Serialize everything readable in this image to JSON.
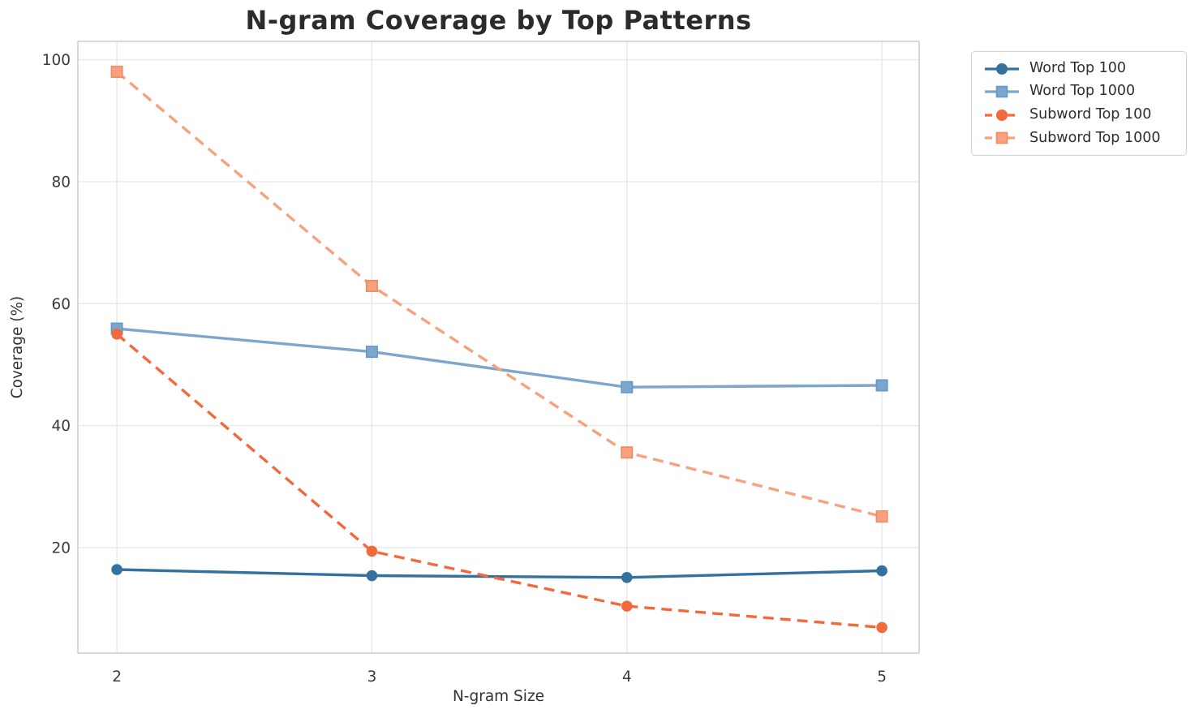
{
  "chart_data": {
    "type": "line",
    "title": "N-gram Coverage by Top Patterns",
    "xlabel": "N-gram Size",
    "ylabel": "Coverage (%)",
    "x": [
      2,
      3,
      4,
      5
    ],
    "xtick_labels": [
      "2",
      "3",
      "4",
      "5"
    ],
    "ytick_values": [
      20,
      40,
      60,
      80,
      100
    ],
    "ytick_labels": [
      "20",
      "40",
      "60",
      "80",
      "100"
    ],
    "xlim": [
      1.847,
      5.146
    ],
    "ylim": [
      2.7,
      103.0
    ],
    "grid": true,
    "legend_position": "outside-upper-right",
    "series": [
      {
        "name": "Word Top 100",
        "marker": "circle",
        "line_style": "solid",
        "color": "#35719f",
        "values": [
          16.4,
          15.4,
          15.1,
          16.2
        ]
      },
      {
        "name": "Word Top 1000",
        "marker": "square",
        "line_style": "solid",
        "color": "#7ba6cd",
        "marker_edge": "#6797c4",
        "values": [
          55.9,
          52.1,
          46.3,
          46.6
        ]
      },
      {
        "name": "Subword Top 100",
        "marker": "circle",
        "line_style": "dashed",
        "color": "#f2693c",
        "values": [
          55.0,
          19.4,
          10.4,
          6.9
        ]
      },
      {
        "name": "Subword Top 1000",
        "marker": "square",
        "line_style": "dashed",
        "color": "#f8a17e",
        "marker_edge": "#f18a5f",
        "values": [
          98.0,
          62.9,
          35.6,
          25.1
        ]
      }
    ],
    "style": {
      "background": "#ffffff",
      "grid_color": "#e8e8e8",
      "spine_color": "#c9c9c9",
      "tick_label_color": "#3b3b3b",
      "title_color": "#2b2b2b",
      "axis_label_color": "#333333",
      "legend_border_color": "#d2d2d2",
      "legend_text_color": "#2e2e2e"
    }
  }
}
